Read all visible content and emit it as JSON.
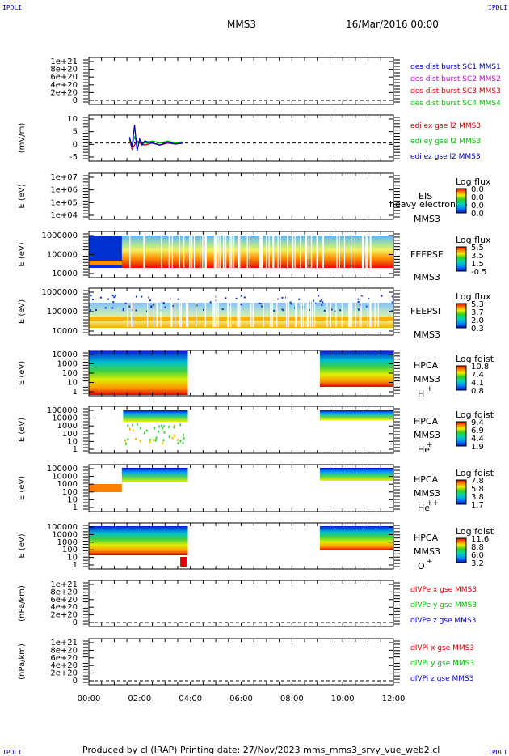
{
  "header": {
    "corner_text": "IPDLI",
    "mission": "MMS3",
    "date": "16/Mar/2016 00:00"
  },
  "footer": {
    "text": "Produced by cl (IRAP)   Printing date: 27/Nov/2023   mms_mms3_srvy_vue_web2.cl"
  },
  "colors": {
    "red": "#d00000",
    "green": "#00c000",
    "blue": "#0000c0",
    "magenta": "#d000d0"
  },
  "chart_data": {
    "type": "multi-panel time series",
    "x_ticks": [
      "00:00",
      "02:00",
      "04:00",
      "06:00",
      "08:00",
      "10:00",
      "12:00"
    ],
    "x_range_hours": [
      0,
      12
    ],
    "panels": [
      {
        "id": "p1",
        "type": "line",
        "y_ticks": [
          "1e+21",
          "8e+20",
          "6e+20",
          "4e+20",
          "2e+20",
          "0"
        ],
        "legend": [
          {
            "name": "des dist burst SC1 MMS1",
            "color": "blue"
          },
          {
            "name": "des dist burst SC2 MMS2",
            "color": "magenta"
          },
          {
            "name": "des dist burst SC3 MMS3",
            "color": "red"
          },
          {
            "name": "des dist burst SC4 MMS4",
            "color": "green"
          }
        ]
      },
      {
        "id": "p2",
        "type": "line",
        "ylabel": "(mV/m)",
        "y_ticks": [
          "10",
          "5",
          "0",
          "-5"
        ],
        "ylim": [
          -7,
          12
        ],
        "legend": [
          {
            "name": "edi ex gse l2 MMS3",
            "color": "red"
          },
          {
            "name": "edi ey gse l2 MMS3",
            "color": "green"
          },
          {
            "name": "edi ez gse l2 MMS3",
            "color": "blue"
          }
        ],
        "data_hours": [
          1.6,
          3.7
        ],
        "series": [
          {
            "name": "edi ex gse l2 MMS3",
            "color": "red",
            "x": [
              1.6,
              1.7,
              1.8,
              1.9,
              2.0,
              2.2,
              2.5,
              2.8,
              3.1,
              3.4,
              3.7
            ],
            "y": [
              2,
              -3,
              -1,
              1,
              0,
              -1,
              0,
              -1,
              0,
              -0.5,
              0
            ]
          },
          {
            "name": "edi ey gse l2 MMS3",
            "color": "green",
            "x": [
              1.6,
              1.7,
              1.8,
              1.9,
              2.0,
              2.2,
              2.5,
              2.8,
              3.1,
              3.4,
              3.7
            ],
            "y": [
              1,
              -1,
              3,
              0,
              1,
              0,
              1,
              0,
              1,
              0,
              0.5
            ]
          },
          {
            "name": "edi ez gse l2 MMS3",
            "color": "blue",
            "x": [
              1.6,
              1.7,
              1.8,
              1.9,
              2.0,
              2.1,
              2.2,
              2.5,
              2.8,
              3.1,
              3.4,
              3.7
            ],
            "y": [
              3,
              -2,
              9,
              -4,
              2,
              -1,
              1,
              0,
              -1,
              0.5,
              -0.5,
              0
            ]
          }
        ]
      },
      {
        "id": "p3",
        "type": "spectrogram",
        "ylabel": "E (eV)",
        "y_ticks": [
          "1e+07",
          "1e+06",
          "1e+05",
          "1e+04"
        ],
        "label": "EIS",
        "label2": "MMS3",
        "note": "heavy electron to",
        "cbar_title": "Log flux",
        "cbar_ticks": [
          "0.0",
          "0.0",
          "0.0",
          "0.0"
        ]
      },
      {
        "id": "p4",
        "type": "spectrogram",
        "ylabel": "E (eV)",
        "y_ticks": [
          "1000000",
          "100000",
          "10000"
        ],
        "label": "FEEPSE",
        "label2": "MMS3",
        "cbar_title": "Log flux",
        "cbar_ticks": [
          "5.5",
          "3.5",
          "1.5",
          "-0.5"
        ],
        "data_hours": [
          0,
          12
        ]
      },
      {
        "id": "p5",
        "type": "spectrogram",
        "ylabel": "E (eV)",
        "y_ticks": [
          "1000000",
          "100000",
          "10000"
        ],
        "label": "FEEPSI",
        "label2": "MMS3",
        "cbar_title": "Log flux",
        "cbar_ticks": [
          "5.3",
          "3.7",
          "2.0",
          "0.3"
        ],
        "data_hours": [
          0,
          12
        ]
      },
      {
        "id": "p6",
        "type": "spectrogram",
        "ylabel": "E (eV)",
        "y_ticks": [
          "10000",
          "1000",
          "100",
          "10",
          "1"
        ],
        "label": "HPCA",
        "label2": "MMS3",
        "species": "H",
        "sup": "+",
        "cbar_title": "Log fdist",
        "cbar_ticks": [
          "10.8",
          "7.4",
          "4.1",
          "0.8"
        ],
        "data_hours": [
          [
            0,
            3.9
          ],
          [
            9.1,
            12
          ]
        ]
      },
      {
        "id": "p7",
        "type": "spectrogram",
        "ylabel": "E (eV)",
        "y_ticks": [
          "100000",
          "10000",
          "1000",
          "100",
          "10",
          "1"
        ],
        "label": "HPCA",
        "label2": "MMS3",
        "species": "He",
        "sup": "+",
        "cbar_title": "Log fdist",
        "cbar_ticks": [
          "9.4",
          "6.9",
          "4.4",
          "1.9"
        ],
        "data_hours": [
          [
            1.3,
            3.9
          ],
          [
            9.1,
            12
          ]
        ]
      },
      {
        "id": "p8",
        "type": "spectrogram",
        "ylabel": "E (eV)",
        "y_ticks": [
          "100000",
          "10000",
          "1000",
          "100",
          "10",
          "1"
        ],
        "label": "HPCA",
        "label2": "MMS3",
        "species": "He",
        "sup": "++",
        "cbar_title": "Log fdist",
        "cbar_ticks": [
          "7.8",
          "5.8",
          "3.8",
          "1.7"
        ],
        "data_hours": [
          [
            0,
            3.9
          ],
          [
            9.1,
            12
          ]
        ]
      },
      {
        "id": "p9",
        "type": "spectrogram",
        "ylabel": "E (eV)",
        "y_ticks": [
          "100000",
          "10000",
          "1000",
          "100",
          "10",
          "1"
        ],
        "label": "HPCA",
        "label2": "MMS3",
        "species": "O",
        "sup": "+",
        "cbar_title": "Log fdist",
        "cbar_ticks": [
          "11.6",
          "8.8",
          "6.0",
          "3.2"
        ],
        "data_hours": [
          [
            0,
            3.9
          ],
          [
            9.1,
            12
          ]
        ]
      },
      {
        "id": "p10",
        "type": "line",
        "ylabel": "(nPa/km)",
        "y_ticks": [
          "1e+21",
          "8e+20",
          "6e+20",
          "4e+20",
          "2e+20",
          "0"
        ],
        "legend": [
          {
            "name": "dIVPe x gse MMS3",
            "color": "red"
          },
          {
            "name": "dIVPe y gse MMS3",
            "color": "green"
          },
          {
            "name": "dIVPe z gse MMS3",
            "color": "blue"
          }
        ]
      },
      {
        "id": "p11",
        "type": "line",
        "ylabel": "(nPa/km)",
        "y_ticks": [
          "1e+21",
          "8e+20",
          "6e+20",
          "4e+20",
          "2e+20",
          "0"
        ],
        "legend": [
          {
            "name": "dIVPi x gse MMS3",
            "color": "red"
          },
          {
            "name": "dIVPi y gse MMS3",
            "color": "green"
          },
          {
            "name": "dIVPi z gse MMS3",
            "color": "blue"
          }
        ]
      }
    ]
  }
}
